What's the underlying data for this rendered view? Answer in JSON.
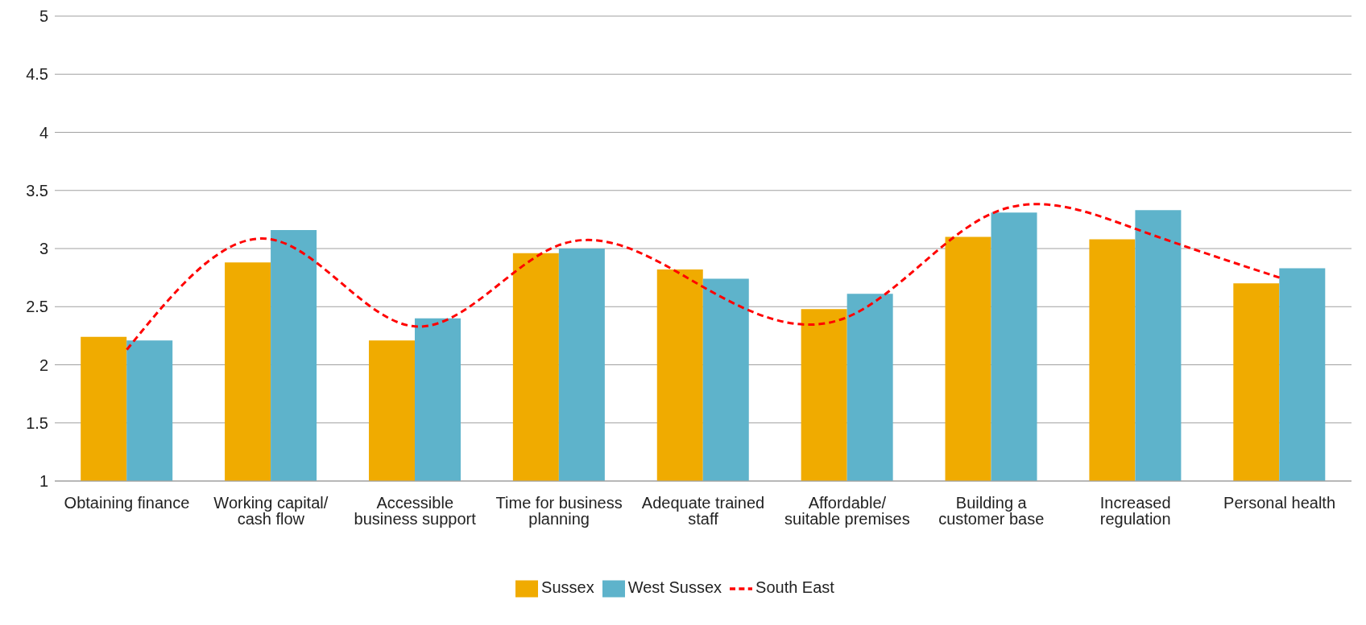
{
  "chart_data": {
    "type": "bar",
    "categories": [
      "Obtaining finance",
      "Working capital/ cash flow",
      "Accessible business support",
      "Time for business planning",
      "Adequate trained staff",
      "Affordable/ suitable premises",
      "Building a customer base",
      "Increased regulation",
      "Personal health"
    ],
    "series": [
      {
        "name": "Sussex",
        "color": "#f0ab00",
        "values": [
          2.24,
          2.88,
          2.21,
          2.96,
          2.82,
          2.48,
          3.1,
          3.08,
          2.7
        ]
      },
      {
        "name": "West Sussex",
        "color": "#5eb3cb",
        "values": [
          2.21,
          3.16,
          2.4,
          3.0,
          2.74,
          2.61,
          3.31,
          3.33,
          2.83
        ]
      },
      {
        "name": "South East",
        "type": "line",
        "color": "#ff0000",
        "line_style": "dashed",
        "marker": "none",
        "values": [
          2.13,
          3.08,
          2.33,
          3.03,
          2.67,
          2.41,
          3.3,
          3.17,
          2.75
        ]
      }
    ],
    "ylim": [
      1,
      5
    ],
    "yticks": [
      1,
      1.5,
      2,
      2.5,
      3,
      3.5,
      4,
      4.5,
      5
    ],
    "grid": "y",
    "legend": "bottom"
  }
}
